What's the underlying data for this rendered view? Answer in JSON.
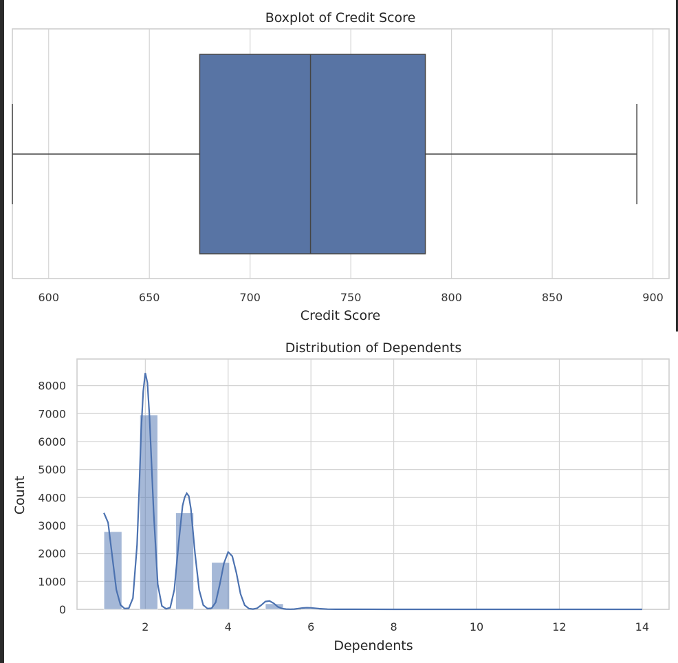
{
  "colors": {
    "box": "#5874a4",
    "bar": "#4c72b0",
    "kde": "#4c72b0",
    "whisker": "#444444"
  },
  "chart_data": [
    {
      "type": "boxplot",
      "title": "Boxplot of Credit Score",
      "xlabel": "Credit Score",
      "xlim": [
        582,
        908
      ],
      "xticks": [
        600,
        650,
        700,
        750,
        800,
        850,
        900
      ],
      "grid": true,
      "box": {
        "whisker_low": 582,
        "q1": 675,
        "median": 730,
        "q3": 787,
        "whisker_high": 892
      }
    },
    {
      "type": "bar",
      "title": "Distribution of Dependents",
      "xlabel": "Dependents",
      "ylabel": "Count",
      "xlim": [
        0.35,
        14.65
      ],
      "ylim": [
        0,
        8950
      ],
      "xticks": [
        2,
        4,
        6,
        8,
        10,
        12,
        14
      ],
      "yticks": [
        0,
        1000,
        2000,
        3000,
        4000,
        5000,
        6000,
        7000,
        8000
      ],
      "grid": true,
      "bars": [
        {
          "x0": 1.0,
          "x1": 1.433,
          "count": 2780
        },
        {
          "x0": 1.867,
          "x1": 2.3,
          "count": 6950
        },
        {
          "x0": 2.733,
          "x1": 3.167,
          "count": 3450
        },
        {
          "x0": 3.6,
          "x1": 4.033,
          "count": 1680
        },
        {
          "x0": 4.9,
          "x1": 5.333,
          "count": 200
        },
        {
          "x0": 5.767,
          "x1": 6.2,
          "count": 30
        }
      ],
      "kde": {
        "x": [
          1.0,
          1.1,
          1.2,
          1.3,
          1.4,
          1.5,
          1.6,
          1.7,
          1.8,
          1.85,
          1.9,
          1.95,
          2.0,
          2.05,
          2.1,
          2.2,
          2.3,
          2.4,
          2.5,
          2.6,
          2.7,
          2.8,
          2.9,
          2.95,
          3.0,
          3.05,
          3.1,
          3.2,
          3.3,
          3.4,
          3.5,
          3.6,
          3.7,
          3.8,
          3.9,
          4.0,
          4.1,
          4.2,
          4.3,
          4.4,
          4.5,
          4.6,
          4.7,
          4.8,
          4.9,
          5.0,
          5.1,
          5.2,
          5.3,
          5.4,
          5.5,
          5.6,
          5.7,
          5.8,
          5.9,
          6.0,
          6.2,
          6.4,
          6.6,
          7.0,
          8.0,
          10.0,
          12.0,
          14.0
        ],
        "y": [
          3450,
          3100,
          1900,
          700,
          160,
          30,
          40,
          400,
          2300,
          4200,
          6400,
          7800,
          8450,
          8100,
          6900,
          3500,
          900,
          120,
          20,
          60,
          700,
          2300,
          3700,
          4000,
          4150,
          4050,
          3600,
          2000,
          700,
          150,
          30,
          40,
          250,
          900,
          1650,
          2050,
          1900,
          1300,
          550,
          150,
          30,
          10,
          40,
          150,
          280,
          300,
          220,
          90,
          30,
          10,
          5,
          10,
          30,
          50,
          60,
          55,
          25,
          8,
          3,
          2,
          1,
          1,
          1,
          1
        ]
      }
    }
  ]
}
